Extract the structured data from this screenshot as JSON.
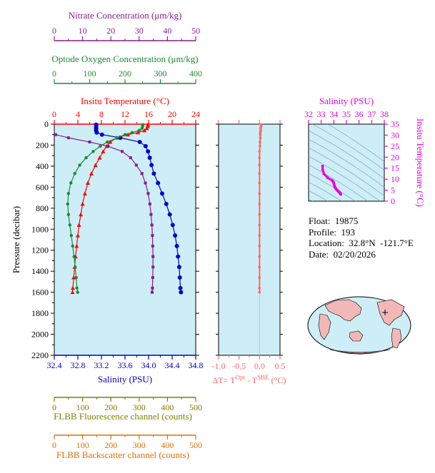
{
  "colors": {
    "nitrate": "#8b1a8b",
    "oxygen": "#1a8a2e",
    "temperature": "#ff0000",
    "salinity": "#0000cc",
    "delta_t": "#ff6666",
    "fluorescence": "#808000",
    "backscatter": "#e07000",
    "tsdiag": "#e600e6",
    "panel_bg": "#cdeef7",
    "land": "#f2b8b8"
  },
  "float_info": {
    "float": "Float:  19875",
    "profile": "Profile:  193",
    "location": "Location:  32.8°N  -121.7°E",
    "date": "Date:  02/20/2026"
  },
  "chart_data": [
    {
      "type": "line",
      "title": "",
      "ylabel": "Pressure (decibar)",
      "ylim": [
        2200,
        0
      ],
      "yticks": [
        "0",
        "200",
        "400",
        "600",
        "800",
        "1000",
        "1200",
        "1400",
        "1600",
        "1800",
        "2000",
        "2200"
      ],
      "axes": {
        "nitrate": {
          "label": "Nitrate Concentration (μm/kg)",
          "range": [
            0,
            50
          ],
          "ticks": [
            "0",
            "10",
            "20",
            "30",
            "40",
            "50"
          ]
        },
        "oxygen": {
          "label": "Optode Oxygen Concentration (μm/kg)",
          "range": [
            0,
            400
          ],
          "ticks": [
            "0",
            "100",
            "200",
            "300",
            "400"
          ]
        },
        "temperature": {
          "label": "Insitu Temperature (°C)",
          "range": [
            0,
            24
          ],
          "ticks": [
            "0",
            "4",
            "8",
            "12",
            "16",
            "20",
            "24"
          ]
        },
        "salinity": {
          "label": "Salinity (PSU)",
          "range": [
            32.4,
            34.8
          ],
          "ticks": [
            "32.4",
            "32.8",
            "33.2",
            "33.6",
            "34.0",
            "34.4",
            "34.8"
          ]
        },
        "fluorescence": {
          "label": "FLBB Fluorescence channel (counts)",
          "range": [
            0,
            500
          ],
          "ticks": [
            "0",
            "100",
            "200",
            "300",
            "400",
            "500"
          ]
        },
        "backscatter": {
          "label": "FLBB Backscatter channel (counts)",
          "range": [
            0,
            500
          ],
          "ticks": [
            "0",
            "100",
            "200",
            "300",
            "400",
            "500"
          ]
        }
      },
      "series": [
        {
          "key": "salinity",
          "pressure": [
            5,
            20,
            40,
            60,
            80,
            100,
            130,
            170,
            210,
            260,
            320,
            390,
            470,
            560,
            660,
            760,
            860,
            960,
            1060,
            1160,
            1260,
            1360,
            1460,
            1560,
            1600
          ],
          "values": [
            33.11,
            33.11,
            33.11,
            33.11,
            33.12,
            33.21,
            33.52,
            33.85,
            33.95,
            33.99,
            34.02,
            34.05,
            34.09,
            34.16,
            34.23,
            34.3,
            34.36,
            34.41,
            34.45,
            34.48,
            34.5,
            34.52,
            34.53,
            34.54,
            34.55
          ]
        },
        {
          "key": "temperature",
          "pressure": [
            5,
            20,
            40,
            60,
            80,
            100,
            130,
            170,
            210,
            260,
            320,
            390,
            470,
            560,
            660,
            760,
            860,
            960,
            1060,
            1160,
            1260,
            1360,
            1460,
            1560,
            1600
          ],
          "values": [
            15.9,
            15.85,
            15.7,
            15.3,
            14.2,
            12.5,
            10.6,
            9.5,
            8.9,
            8.3,
            7.7,
            7.0,
            6.3,
            5.7,
            5.2,
            4.8,
            4.5,
            4.2,
            4.0,
            3.8,
            3.6,
            3.45,
            3.3,
            3.15,
            3.1
          ]
        },
        {
          "key": "oxygen",
          "pressure": [
            5,
            20,
            40,
            60,
            80,
            100,
            130,
            170,
            210,
            260,
            320,
            390,
            470,
            560,
            660,
            760,
            860,
            960,
            1060,
            1160,
            1260,
            1360,
            1460,
            1560,
            1600
          ],
          "values": [
            250,
            250,
            248,
            240,
            220,
            200,
            178,
            150,
            130,
            110,
            90,
            72,
            58,
            47,
            40,
            38,
            40,
            44,
            48,
            52,
            56,
            59,
            62,
            64,
            66
          ]
        },
        {
          "key": "nitrate",
          "pressure": [
            100,
            130,
            170,
            210,
            260,
            320,
            390,
            470,
            560,
            660,
            760,
            860,
            960,
            1060,
            1160,
            1260,
            1360,
            1460,
            1560,
            1600
          ],
          "values": [
            0.5,
            5,
            12.5,
            19,
            24,
            27,
            29,
            31,
            32.2,
            33.2,
            33.8,
            34.2,
            34.5,
            34.7,
            34.8,
            34.9,
            34.9,
            34.8,
            34.7,
            34.6
          ]
        }
      ]
    },
    {
      "type": "line",
      "title": "",
      "xlabel": "ΔT= T^Opt - T^SBE (°C)",
      "xlim": [
        -1.0,
        0.5
      ],
      "xticks": [
        "-1.0",
        "-0.5",
        "0.0",
        "0.5"
      ],
      "ylim": [
        2200,
        0
      ],
      "series": [
        {
          "key": "delta_t",
          "pressure": [
            5,
            20,
            40,
            60,
            80,
            100,
            130,
            170,
            210,
            260,
            320,
            390,
            470,
            560,
            660,
            760,
            860,
            960,
            1060,
            1160,
            1260,
            1360,
            1460,
            1560,
            1600
          ],
          "values": [
            0.04,
            0.04,
            0.03,
            0.03,
            0.02,
            0.02,
            0.02,
            0.01,
            0.01,
            0.0,
            0.0,
            0.0,
            0.0,
            0.0,
            0.0,
            0.0,
            0.0,
            0.0,
            0.0,
            0.0,
            0.0,
            0.0,
            0.0,
            0.0,
            0.0
          ]
        }
      ]
    },
    {
      "type": "scatter",
      "title": "",
      "xlabel": "Salinity (PSU)",
      "ylabel": "Insitu Temperature (°C)",
      "xlim": [
        32,
        38
      ],
      "ylim": [
        0,
        35
      ],
      "xticks": [
        "32",
        "33",
        "34",
        "35",
        "36",
        "37",
        "38"
      ],
      "yticks": [
        "0",
        "5",
        "10",
        "15",
        "20",
        "25",
        "30",
        "35"
      ],
      "series": [
        {
          "key": "ts",
          "salinity": [
            33.11,
            33.12,
            33.21,
            33.52,
            33.85,
            33.95,
            33.99,
            34.02,
            34.05,
            34.09,
            34.16,
            34.23,
            34.3,
            34.36,
            34.41,
            34.45,
            34.48,
            34.5,
            34.52,
            34.53,
            34.55
          ],
          "temperature": [
            15.9,
            14.2,
            12.5,
            10.6,
            9.5,
            8.9,
            8.3,
            7.7,
            7.0,
            6.3,
            5.7,
            5.2,
            4.8,
            4.5,
            4.2,
            4.0,
            3.8,
            3.6,
            3.45,
            3.3,
            3.1
          ]
        }
      ]
    }
  ]
}
